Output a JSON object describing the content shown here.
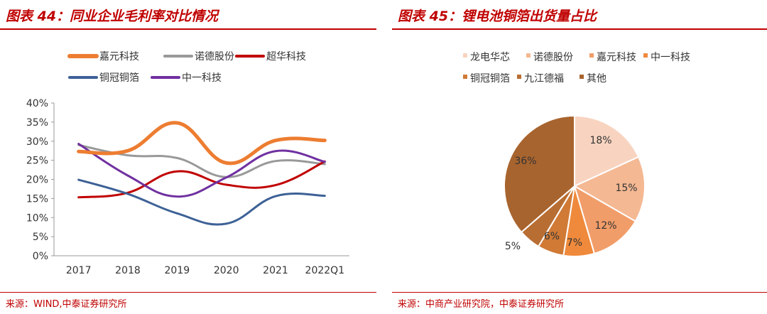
{
  "figures": [
    {
      "title": "图表 44：同业企业毛利率对比情况",
      "source": "来源：WIND,中泰证券研究所"
    },
    {
      "title": "图表 45：锂电池铜箔出货量占比",
      "source": "来源：中商产业研究院，中泰证券研究所"
    }
  ],
  "chart_data": [
    {
      "type": "line",
      "title": "图表 44：同业企业毛利率对比情况",
      "categories": [
        "2017",
        "2018",
        "2019",
        "2020",
        "2021",
        "2022Q1"
      ],
      "y_ticks": [
        "0%",
        "5%",
        "10%",
        "15%",
        "20%",
        "25%",
        "30%",
        "35%",
        "40%"
      ],
      "ylim": [
        0,
        40
      ],
      "legend_position": "top",
      "series": [
        {
          "name": "嘉元科技",
          "color": "#ed7d31",
          "width": 5,
          "values": [
            27.3,
            27.5,
            34.8,
            24.3,
            30.2,
            30.2
          ]
        },
        {
          "name": "诺德股份",
          "color": "#999999",
          "width": 3,
          "values": [
            29.0,
            26.3,
            25.6,
            20.6,
            24.8,
            24.0
          ]
        },
        {
          "name": "超华科技",
          "color": "#c00000",
          "width": 3,
          "values": [
            15.3,
            16.5,
            22.1,
            18.6,
            18.5,
            24.7
          ]
        },
        {
          "name": "铜冠铜箔",
          "color": "#3d6196",
          "width": 3,
          "values": [
            19.9,
            16.2,
            11.1,
            8.4,
            15.6,
            15.7
          ]
        },
        {
          "name": "中一科技",
          "color": "#7030a0",
          "width": 3,
          "values": [
            29.3,
            21.0,
            15.5,
            20.5,
            27.4,
            24.6
          ]
        }
      ]
    },
    {
      "type": "pie",
      "title": "图表 45：锂电池铜箔出货量占比",
      "legend_position": "top",
      "slices": [
        {
          "name": "龙电华芯",
          "value": 18,
          "label": "18%",
          "color": "#f8d4c0"
        },
        {
          "name": "诺德股份",
          "value": 15,
          "label": "15%",
          "color": "#f4b893"
        },
        {
          "name": "嘉元科技",
          "value": 12,
          "label": "12%",
          "color": "#f19d69"
        },
        {
          "name": "中一科技",
          "value": 7,
          "label": "7%",
          "color": "#ef8a3c"
        },
        {
          "name": "铜冠铜箔",
          "value": 6,
          "label": "6%",
          "color": "#d07a36"
        },
        {
          "name": "九江德福",
          "value": 5,
          "label": "5%",
          "color": "#b86e33"
        },
        {
          "name": "其他",
          "value": 36,
          "label": "36%",
          "color": "#a8642e"
        }
      ]
    }
  ]
}
